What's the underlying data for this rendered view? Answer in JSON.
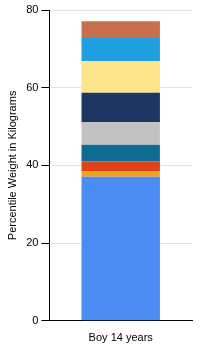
{
  "chart_data": {
    "type": "bar",
    "ylabel": "Percentile Weight in Kilograms",
    "categories": [
      "Boy 14 years"
    ],
    "stacked": true,
    "series": [
      {
        "color": "#4a8cf2",
        "values": [
          37.1
        ]
      },
      {
        "color": "#f2a31c",
        "values": [
          1.3
        ]
      },
      {
        "color": "#e2421a",
        "values": [
          2.7
        ]
      },
      {
        "color": "#0e6c94",
        "values": [
          4.2
        ]
      },
      {
        "color": "#c2c2c2",
        "values": [
          5.9
        ]
      },
      {
        "color": "#1c3762",
        "values": [
          7.5
        ]
      },
      {
        "color": "#fde389",
        "values": [
          8.2
        ]
      },
      {
        "color": "#1f9fe0",
        "values": [
          5.9
        ]
      },
      {
        "color": "#c8704e",
        "values": [
          4.3
        ]
      }
    ],
    "ylim": [
      0,
      80
    ],
    "yticks": [
      0,
      20,
      40,
      60,
      80
    ],
    "grid": true
  }
}
